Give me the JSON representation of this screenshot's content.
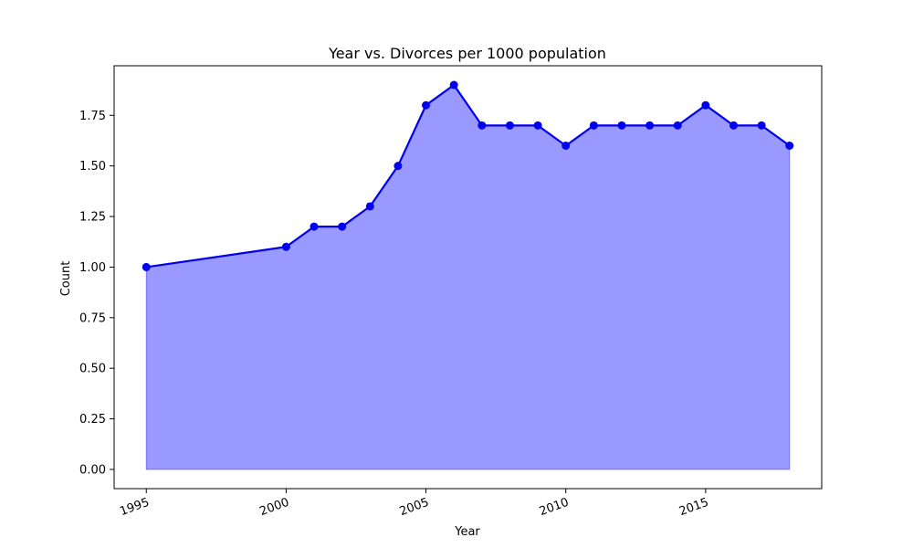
{
  "chart_data": {
    "type": "area",
    "title": "Year vs. Divorces per 1000 population",
    "xlabel": "Year",
    "ylabel": "Count",
    "x": [
      1995,
      2000,
      2001,
      2002,
      2003,
      2004,
      2005,
      2006,
      2007,
      2008,
      2009,
      2010,
      2011,
      2012,
      2013,
      2014,
      2015,
      2016,
      2017,
      2018
    ],
    "series": [
      {
        "values": [
          1.0,
          1.1,
          1.2,
          1.2,
          1.3,
          1.5,
          1.8,
          1.9,
          1.7,
          1.7,
          1.7,
          1.6,
          1.7,
          1.7,
          1.7,
          1.7,
          1.8,
          1.7,
          1.7,
          1.6
        ]
      }
    ],
    "xlim": [
      1993.85,
      2019.15
    ],
    "ylim": [
      -0.095,
      1.995
    ],
    "x_ticks": [
      "1995",
      "2000",
      "2005",
      "2010",
      "2015"
    ],
    "y_ticks": [
      "0.00",
      "0.25",
      "0.50",
      "0.75",
      "1.00",
      "1.25",
      "1.50",
      "1.75"
    ],
    "grid": false,
    "colors": {
      "line": "#0000ee",
      "fill": "#9999ff",
      "marker": "#0000ee"
    }
  }
}
